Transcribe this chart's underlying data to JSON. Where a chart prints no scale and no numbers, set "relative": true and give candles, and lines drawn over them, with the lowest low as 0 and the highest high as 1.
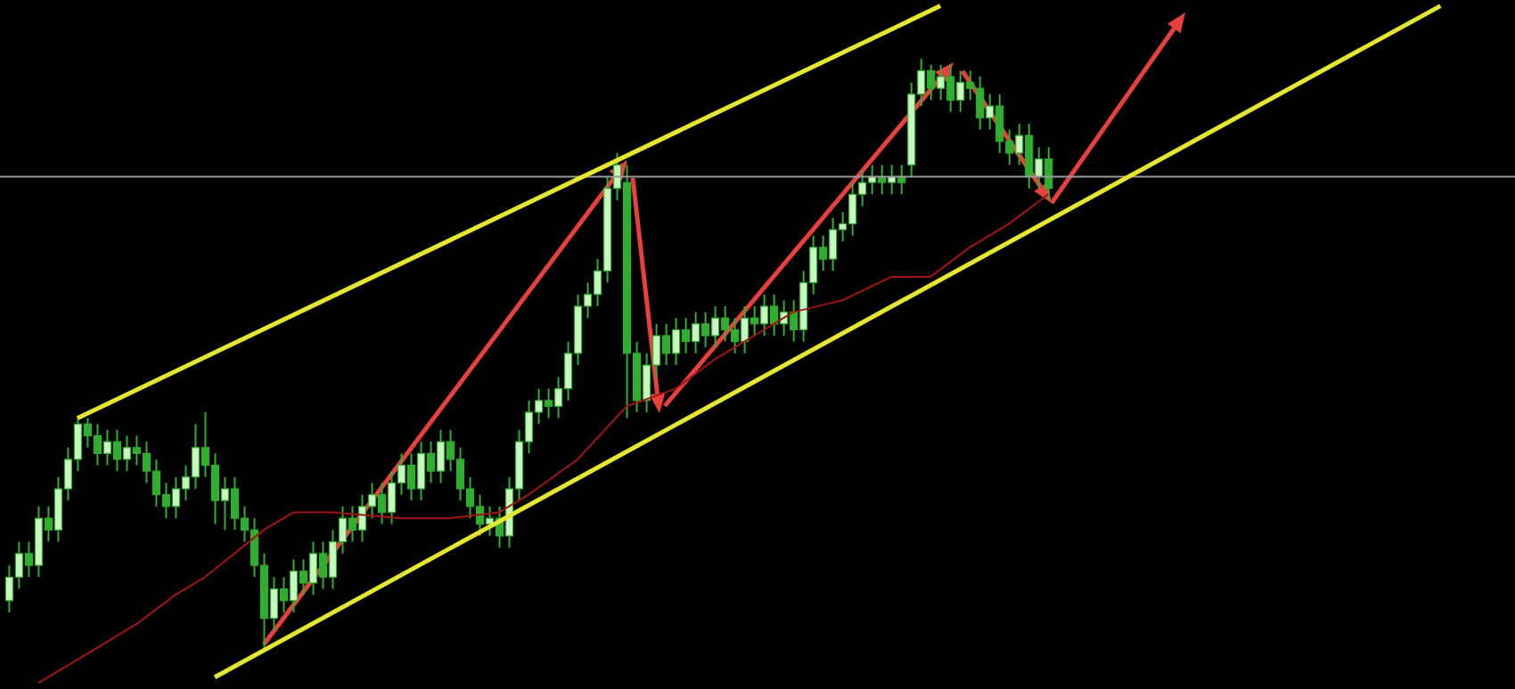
{
  "chart_data": {
    "type": "candlestick",
    "relative": true,
    "color": "#2fae2f",
    "categories": [
      null,
      null,
      null,
      null,
      null,
      null,
      null,
      null,
      null,
      null,
      null,
      null,
      null,
      null,
      null,
      null,
      null,
      null,
      null,
      null,
      null,
      null,
      null,
      null,
      null,
      null,
      null,
      null,
      null,
      null,
      null,
      null,
      null,
      null,
      null,
      null,
      null,
      null,
      null,
      null,
      null,
      null,
      null,
      null,
      null,
      null,
      null,
      null,
      null,
      null,
      null,
      null,
      null,
      null,
      null,
      null,
      null,
      null,
      null,
      null,
      null,
      null,
      null,
      null,
      null,
      null,
      null,
      null,
      null,
      null,
      null,
      null,
      null,
      null,
      null,
      null,
      null,
      null,
      null,
      null,
      null,
      null,
      null,
      null,
      null,
      null,
      null,
      null,
      null,
      null,
      null,
      null,
      null,
      null,
      null,
      null,
      null,
      null,
      null,
      null,
      null,
      null,
      null,
      null,
      null,
      null,
      null,
      null,
      null,
      null,
      null,
      null,
      null,
      null,
      null,
      null,
      null,
      null,
      null,
      null,
      null,
      null,
      null,
      null,
      null,
      null,
      null,
      null,
      null,
      null,
      null,
      null,
      null,
      null,
      null,
      null,
      null,
      null,
      null,
      null,
      null,
      null,
      null,
      null,
      null,
      null,
      null,
      null,
      null,
      null,
      null,
      null,
      null,
      null
    ],
    "ohlc": [
      [
        0.08,
        0.14,
        0.06,
        0.12
      ],
      [
        0.12,
        0.18,
        0.1,
        0.16
      ],
      [
        0.16,
        0.18,
        0.12,
        0.14
      ],
      [
        0.14,
        0.24,
        0.12,
        0.22
      ],
      [
        0.22,
        0.24,
        0.18,
        0.2
      ],
      [
        0.2,
        0.29,
        0.18,
        0.27
      ],
      [
        0.27,
        0.34,
        0.25,
        0.32
      ],
      [
        0.32,
        0.39,
        0.3,
        0.38
      ],
      [
        0.38,
        0.39,
        0.34,
        0.36
      ],
      [
        0.36,
        0.38,
        0.31,
        0.33
      ],
      [
        0.33,
        0.37,
        0.31,
        0.35
      ],
      [
        0.35,
        0.37,
        0.3,
        0.32
      ],
      [
        0.32,
        0.36,
        0.3,
        0.34
      ],
      [
        0.34,
        0.36,
        0.31,
        0.33
      ],
      [
        0.33,
        0.35,
        0.28,
        0.3
      ],
      [
        0.3,
        0.32,
        0.24,
        0.26
      ],
      [
        0.26,
        0.28,
        0.22,
        0.24
      ],
      [
        0.24,
        0.29,
        0.22,
        0.27
      ],
      [
        0.27,
        0.31,
        0.25,
        0.29
      ],
      [
        0.29,
        0.38,
        0.27,
        0.34
      ],
      [
        0.34,
        0.4,
        0.29,
        0.31
      ],
      [
        0.31,
        0.33,
        0.21,
        0.25
      ],
      [
        0.25,
        0.29,
        0.2,
        0.27
      ],
      [
        0.27,
        0.29,
        0.2,
        0.22
      ],
      [
        0.22,
        0.24,
        0.18,
        0.2
      ],
      [
        0.2,
        0.22,
        0.12,
        0.14
      ],
      [
        0.14,
        0.16,
        0.0,
        0.05
      ],
      [
        0.05,
        0.12,
        0.03,
        0.1
      ],
      [
        0.1,
        0.12,
        0.06,
        0.08
      ],
      [
        0.08,
        0.15,
        0.06,
        0.13
      ],
      [
        0.13,
        0.15,
        0.09,
        0.11
      ],
      [
        0.11,
        0.18,
        0.09,
        0.16
      ],
      [
        0.16,
        0.18,
        0.1,
        0.12
      ],
      [
        0.12,
        0.2,
        0.1,
        0.18
      ],
      [
        0.18,
        0.24,
        0.16,
        0.22
      ],
      [
        0.22,
        0.24,
        0.18,
        0.2
      ],
      [
        0.2,
        0.26,
        0.18,
        0.24
      ],
      [
        0.24,
        0.28,
        0.22,
        0.26
      ],
      [
        0.26,
        0.28,
        0.21,
        0.23
      ],
      [
        0.23,
        0.3,
        0.21,
        0.28
      ],
      [
        0.28,
        0.33,
        0.26,
        0.31
      ],
      [
        0.31,
        0.33,
        0.25,
        0.27
      ],
      [
        0.27,
        0.35,
        0.25,
        0.33
      ],
      [
        0.33,
        0.35,
        0.28,
        0.3
      ],
      [
        0.3,
        0.37,
        0.28,
        0.35
      ],
      [
        0.35,
        0.37,
        0.3,
        0.32
      ],
      [
        0.32,
        0.34,
        0.25,
        0.27
      ],
      [
        0.27,
        0.29,
        0.22,
        0.24
      ],
      [
        0.24,
        0.26,
        0.19,
        0.21
      ],
      [
        0.21,
        0.24,
        0.19,
        0.22
      ],
      [
        0.22,
        0.24,
        0.17,
        0.19
      ],
      [
        0.19,
        0.29,
        0.17,
        0.27
      ],
      [
        0.27,
        0.37,
        0.25,
        0.35
      ],
      [
        0.35,
        0.42,
        0.33,
        0.4
      ],
      [
        0.4,
        0.44,
        0.38,
        0.42
      ],
      [
        0.42,
        0.44,
        0.39,
        0.41
      ],
      [
        0.41,
        0.46,
        0.39,
        0.44
      ],
      [
        0.44,
        0.52,
        0.42,
        0.5
      ],
      [
        0.5,
        0.6,
        0.48,
        0.58
      ],
      [
        0.58,
        0.62,
        0.56,
        0.6
      ],
      [
        0.6,
        0.66,
        0.58,
        0.64
      ],
      [
        0.64,
        0.8,
        0.62,
        0.78
      ],
      [
        0.78,
        0.84,
        0.76,
        0.82
      ],
      [
        0.79,
        0.82,
        0.39,
        0.5
      ],
      [
        0.5,
        0.52,
        0.4,
        0.42
      ],
      [
        0.42,
        0.5,
        0.4,
        0.48
      ],
      [
        0.48,
        0.55,
        0.46,
        0.53
      ],
      [
        0.53,
        0.55,
        0.48,
        0.5
      ],
      [
        0.5,
        0.56,
        0.48,
        0.54
      ],
      [
        0.54,
        0.56,
        0.5,
        0.52
      ],
      [
        0.52,
        0.57,
        0.5,
        0.55
      ],
      [
        0.55,
        0.57,
        0.51,
        0.53
      ],
      [
        0.53,
        0.58,
        0.51,
        0.56
      ],
      [
        0.56,
        0.58,
        0.52,
        0.54
      ],
      [
        0.54,
        0.56,
        0.5,
        0.52
      ],
      [
        0.52,
        0.58,
        0.5,
        0.56
      ],
      [
        0.56,
        0.58,
        0.53,
        0.55
      ],
      [
        0.55,
        0.6,
        0.53,
        0.58
      ],
      [
        0.58,
        0.6,
        0.53,
        0.55
      ],
      [
        0.55,
        0.59,
        0.53,
        0.57
      ],
      [
        0.57,
        0.59,
        0.52,
        0.54
      ],
      [
        0.54,
        0.64,
        0.52,
        0.62
      ],
      [
        0.62,
        0.7,
        0.6,
        0.68
      ],
      [
        0.68,
        0.7,
        0.64,
        0.66
      ],
      [
        0.66,
        0.73,
        0.64,
        0.71
      ],
      [
        0.71,
        0.74,
        0.69,
        0.72
      ],
      [
        0.72,
        0.79,
        0.7,
        0.77
      ],
      [
        0.77,
        0.81,
        0.75,
        0.79
      ],
      [
        0.79,
        0.82,
        0.77,
        0.8
      ],
      [
        0.8,
        0.82,
        0.77,
        0.79
      ],
      [
        0.79,
        0.82,
        0.77,
        0.8
      ],
      [
        0.8,
        0.82,
        0.77,
        0.79
      ],
      [
        0.82,
        0.96,
        0.8,
        0.94
      ],
      [
        0.94,
        1.0,
        0.92,
        0.98
      ],
      [
        0.98,
        0.99,
        0.93,
        0.95
      ],
      [
        0.95,
        0.99,
        0.93,
        0.97
      ],
      [
        0.97,
        0.99,
        0.91,
        0.93
      ],
      [
        0.93,
        0.98,
        0.91,
        0.96
      ],
      [
        0.96,
        0.98,
        0.93,
        0.95
      ],
      [
        0.95,
        0.97,
        0.88,
        0.9
      ],
      [
        0.9,
        0.94,
        0.88,
        0.92
      ],
      [
        0.92,
        0.94,
        0.84,
        0.86
      ],
      [
        0.86,
        0.88,
        0.82,
        0.84
      ],
      [
        0.84,
        0.89,
        0.82,
        0.87
      ],
      [
        0.87,
        0.89,
        0.78,
        0.8
      ],
      [
        0.8,
        0.85,
        0.78,
        0.83
      ],
      [
        0.83,
        0.85,
        0.76,
        0.78
      ],
      null,
      null,
      null,
      null,
      null,
      null,
      null,
      null,
      null,
      null,
      null,
      null,
      null,
      null,
      null,
      null,
      null,
      null,
      null,
      null,
      null,
      null,
      null,
      null,
      null,
      null,
      null,
      null,
      null,
      null,
      null,
      null,
      null,
      null,
      null,
      null,
      null,
      null,
      null,
      null,
      null,
      null,
      null,
      null,
      null,
      null,
      null
    ],
    "series": [
      {
        "type": "line",
        "color": "#a31515",
        "values": [
          null,
          null,
          null,
          -0.06,
          null,
          null,
          null,
          null,
          -0.01,
          null,
          null,
          null,
          null,
          0.04,
          null,
          null,
          null,
          0.09,
          null,
          null,
          0.12,
          null,
          null,
          0.16,
          null,
          null,
          0.2,
          null,
          null,
          0.23,
          null,
          null,
          null,
          0.23,
          null,
          null,
          null,
          null,
          null,
          null,
          0.22,
          null,
          null,
          null,
          null,
          0.22,
          null,
          null,
          null,
          null,
          0.23,
          null,
          null,
          0.26,
          null,
          null,
          null,
          null,
          0.32,
          null,
          null,
          null,
          null,
          0.41,
          null,
          null,
          null,
          null,
          0.44,
          null,
          null,
          null,
          0.49,
          null,
          null,
          null,
          null,
          null,
          null,
          null,
          0.57,
          null,
          null,
          null,
          null,
          0.59,
          null,
          null,
          null,
          null,
          0.63,
          null,
          null,
          null,
          0.63,
          null,
          null,
          null,
          0.68,
          null,
          null,
          null,
          0.72,
          null,
          null,
          null,
          0.77,
          null,
          null,
          null,
          null,
          null,
          null,
          null,
          null,
          null,
          null,
          null,
          null,
          null,
          null,
          null,
          null,
          null,
          null,
          null,
          null,
          null,
          null,
          null,
          null,
          null,
          null,
          null,
          null,
          null,
          null,
          null,
          null,
          null,
          null,
          null,
          null,
          null,
          null,
          null,
          null,
          null,
          null,
          null,
          null,
          null,
          null,
          null
        ]
      },
      {
        "type": "line",
        "color": "#e6e62e",
        "values": [
          null,
          null,
          null,
          null,
          null,
          null,
          null,
          0.39,
          null,
          null,
          null,
          null,
          null,
          null,
          null,
          null,
          null,
          null,
          null,
          null,
          null,
          null,
          null,
          null,
          null,
          null,
          null,
          null,
          null,
          null,
          null,
          null,
          null,
          null,
          null,
          null,
          null,
          null,
          null,
          null,
          null,
          null,
          null,
          null,
          null,
          null,
          null,
          null,
          null,
          null,
          null,
          null,
          null,
          null,
          null,
          null,
          null,
          null,
          null,
          null,
          null,
          null,
          null,
          null,
          null,
          null,
          null,
          null,
          null,
          null,
          null,
          null,
          null,
          null,
          null,
          null,
          null,
          null,
          null,
          null,
          null,
          null,
          null,
          null,
          null,
          null,
          null,
          null,
          null,
          null,
          null,
          null,
          null,
          null,
          null,
          1.09,
          null,
          null,
          null,
          null,
          null,
          null,
          null,
          null,
          null,
          null,
          null,
          null,
          null,
          null,
          null,
          null,
          null,
          null,
          null,
          null,
          null,
          null,
          null,
          null,
          null,
          null,
          null,
          null,
          null,
          null,
          null,
          null,
          null,
          null,
          null,
          null,
          null,
          null,
          null,
          null,
          null,
          null,
          null,
          null,
          null,
          null,
          null,
          null,
          null,
          null,
          null,
          null,
          null,
          null,
          null,
          null,
          null,
          null
        ]
      },
      {
        "type": "line",
        "color": "#e6e62e",
        "values": [
          null,
          null,
          null,
          null,
          null,
          null,
          null,
          null,
          null,
          null,
          null,
          null,
          null,
          null,
          null,
          null,
          null,
          null,
          null,
          null,
          null,
          -0.05,
          null,
          null,
          null,
          null,
          null,
          null,
          null,
          null,
          null,
          null,
          null,
          null,
          null,
          null,
          null,
          null,
          null,
          null,
          null,
          null,
          null,
          null,
          null,
          null,
          null,
          null,
          null,
          null,
          null,
          null,
          null,
          null,
          null,
          null,
          null,
          null,
          null,
          null,
          null,
          null,
          null,
          null,
          null,
          null,
          null,
          null,
          null,
          null,
          null,
          null,
          null,
          null,
          null,
          null,
          null,
          null,
          null,
          null,
          null,
          null,
          null,
          null,
          null,
          null,
          null,
          null,
          null,
          null,
          null,
          null,
          null,
          null,
          null,
          null,
          null,
          null,
          null,
          null,
          null,
          null,
          null,
          null,
          null,
          null,
          null,
          null,
          null,
          null,
          null,
          null,
          null,
          null,
          null,
          null,
          null,
          null,
          null,
          null,
          null,
          null,
          null,
          null,
          null,
          null,
          null,
          null,
          null,
          null,
          null,
          null,
          null,
          null,
          null,
          null,
          null,
          null,
          null,
          null,
          null,
          null,
          null,
          null,
          null,
          null,
          1.09,
          null,
          null,
          null,
          null,
          null,
          null,
          null
        ]
      }
    ],
    "ref_lines": [
      {
        "axis": "y",
        "value": 0.8,
        "color": "#9a9a9a"
      }
    ]
  }
}
